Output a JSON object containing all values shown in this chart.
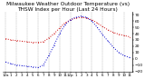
{
  "title": "Milwaukee Weather Outdoor Temperature (vs) THSW Index per Hour (Last 24 Hours)",
  "title_fontsize": 4.2,
  "background_color": "#ffffff",
  "plot_bg_color": "#ffffff",
  "red_color": "#cc0000",
  "blue_color": "#0000cc",
  "grid_color": "#999999",
  "tick_fontsize": 3.2,
  "hours": [
    0,
    1,
    2,
    3,
    4,
    5,
    6,
    7,
    8,
    9,
    10,
    11,
    12,
    13,
    14,
    15,
    16,
    17,
    18,
    19,
    20,
    21,
    22,
    23
  ],
  "temp_values": [
    32,
    30,
    29,
    28,
    27,
    26,
    26,
    27,
    33,
    40,
    49,
    57,
    62,
    65,
    66,
    65,
    62,
    57,
    51,
    46,
    42,
    39,
    37,
    35
  ],
  "thsw_values": [
    -5,
    -8,
    -10,
    -11,
    -12,
    -13,
    -14,
    -10,
    5,
    22,
    40,
    54,
    62,
    66,
    68,
    66,
    60,
    50,
    38,
    28,
    18,
    10,
    5,
    2
  ],
  "ylim": [
    -20,
    75
  ],
  "yticks": [
    -20,
    -10,
    0,
    10,
    20,
    30,
    40,
    50,
    60,
    70
  ],
  "ytick_labels": [
    "-20",
    "-10",
    "0",
    "10",
    "20",
    "30",
    "40",
    "50",
    "60",
    "70"
  ],
  "x_tick_labels": [
    "12a",
    "1",
    "2",
    "3",
    "4",
    "5",
    "6",
    "7",
    "8",
    "9",
    "10",
    "11",
    "12p",
    "1",
    "2",
    "3",
    "4",
    "5",
    "6",
    "7",
    "8",
    "9",
    "10",
    "11"
  ],
  "grid_positions": [
    0,
    2,
    4,
    6,
    8,
    10,
    12,
    14,
    16,
    18,
    20,
    22
  ],
  "figsize": [
    1.6,
    0.87
  ],
  "dpi": 100
}
